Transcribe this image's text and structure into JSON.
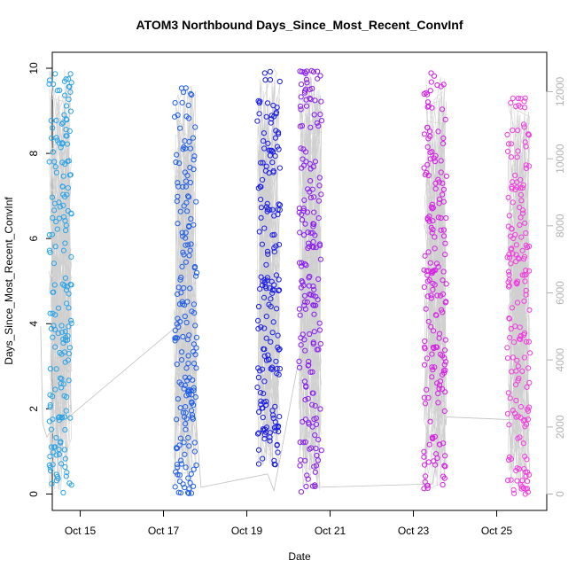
{
  "chart_data": {
    "type": "scatter",
    "title": "ATOM3 Northbound Days_Since_Most_Recent_ConvInf",
    "xlabel": "Date",
    "ylabel": "Days_Since_Most_Recent_ConvInf",
    "x_tick_labels": [
      "Oct 15",
      "Oct 17",
      "Oct 19",
      "Oct 21",
      "Oct 23",
      "Oct 25"
    ],
    "x_tick_values": [
      "2020-10-15",
      "2020-10-17",
      "2020-10-19",
      "2020-10-21",
      "2020-10-23",
      "2020-10-25"
    ],
    "xlim": [
      "2020-10-14",
      "2020-10-26"
    ],
    "ylim": [
      0,
      10
    ],
    "y_ticks": [
      0,
      2,
      4,
      6,
      8,
      10
    ],
    "y2_ticks": [
      0,
      2000,
      4000,
      6000,
      8000,
      10000,
      12000
    ],
    "y2lim": [
      0,
      12700
    ],
    "y2_color": "#b3b3b3",
    "grid": false,
    "marker": "open-circle",
    "series": [
      {
        "date": "2020-10-14",
        "color": "#29a3e8",
        "y_min": 0,
        "y_max": 10
      },
      {
        "date": "2020-10-17",
        "color": "#1f5ee8",
        "y_min": 0,
        "y_max": 9.6
      },
      {
        "date": "2020-10-19",
        "color": "#1b1ee6",
        "y_min": 0.6,
        "y_max": 10
      },
      {
        "date": "2020-10-20",
        "color": "#8a1ef0",
        "y_min": 0,
        "y_max": 10
      },
      {
        "date": "2020-10-23",
        "color": "#d61ee6",
        "y_min": 0,
        "y_max": 9.9
      },
      {
        "date": "2020-10-25",
        "color": "#f23ce0",
        "y_min": 0,
        "y_max": 9.3
      }
    ],
    "secondary_line": {
      "color": "#c0c0c0",
      "points": [
        {
          "x": "2020-10-14",
          "y": 5000
        },
        {
          "x": "2020-10-14",
          "y": 2100
        },
        {
          "x": "2020-10-14",
          "y": 1700
        },
        {
          "x": "2020-10-14",
          "y": 1800
        },
        {
          "x": "2020-10-17",
          "y": 5300
        },
        {
          "x": "2020-10-17",
          "y": 200
        },
        {
          "x": "2020-10-19",
          "y": 600
        },
        {
          "x": "2020-10-19",
          "y": 100
        },
        {
          "x": "2020-10-20",
          "y": 5000
        },
        {
          "x": "2020-10-20",
          "y": 200
        },
        {
          "x": "2020-10-23",
          "y": 300
        },
        {
          "x": "2020-10-23",
          "y": 2300
        },
        {
          "x": "2020-10-25",
          "y": 2200
        }
      ]
    }
  }
}
